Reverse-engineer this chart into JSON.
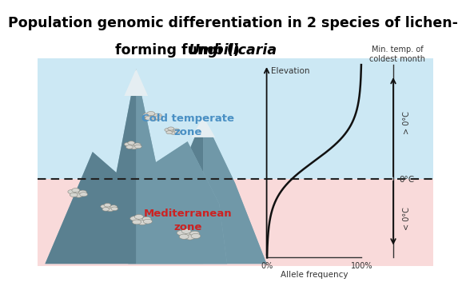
{
  "title_line1": "Population genomic differentiation in 2 species of lichen-",
  "title_line2": "forming fungi (",
  "title_italic": "Umbilicaria",
  "title_end": ")",
  "title_fontsize": 12.5,
  "bg_color": "#ffffff",
  "cold_zone_color": "#cce8f4",
  "med_zone_color": "#f9dada",
  "cold_zone_label": "Cold temperate\nzone",
  "cold_zone_color_text": "#4a90c4",
  "med_zone_label": "Mediterranean\nzone",
  "med_zone_color_text": "#cc2222",
  "elevation_label": "Elevation",
  "allele_label": "Allele frequency",
  "min_temp_label": "Min. temp. of\ncoldest month",
  "zero_c_label": "0°C",
  "above_zero_label": "> 0°C",
  "below_zero_label": "< 0°C",
  "x_tick_left": "0%",
  "x_tick_right": "100%",
  "dashed_line_color": "#222222",
  "curve_color": "#111111",
  "arrow_color": "#111111",
  "mountain_light": "#8ab0be",
  "mountain_dark": "#5a8090",
  "mountain_mid": "#7098a8",
  "snow_color": "#e5eef2",
  "lichen_fill": "#d5d5d0",
  "lichen_edge": "#888880"
}
